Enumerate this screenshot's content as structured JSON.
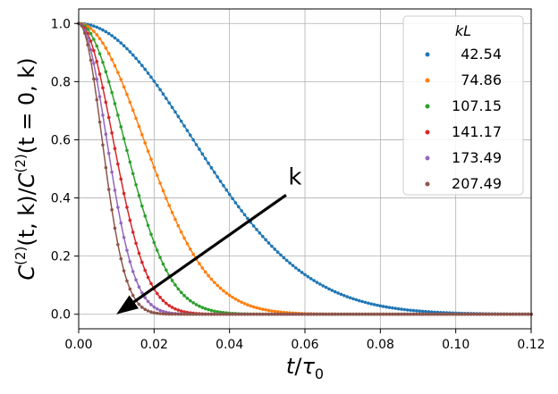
{
  "chart_data": {
    "type": "scatter",
    "title": "",
    "xlabel_parts": [
      "t",
      "/",
      "τ",
      "0"
    ],
    "ylabel_parts": [
      "C",
      "(2)",
      "(t, k)/",
      "C",
      "(2)",
      "(t = 0, k)"
    ],
    "xlim": [
      0.0,
      0.12
    ],
    "ylim": [
      -0.05,
      1.05
    ],
    "x_ticks": [
      0.0,
      0.02,
      0.04,
      0.06,
      0.08,
      0.1,
      0.12
    ],
    "x_tick_labels": [
      "0.00",
      "0.02",
      "0.04",
      "0.06",
      "0.08",
      "0.10",
      "0.12"
    ],
    "y_ticks": [
      0.0,
      0.2,
      0.4,
      0.6,
      0.8,
      1.0
    ],
    "y_tick_labels": [
      "0.0",
      "0.2",
      "0.4",
      "0.6",
      "0.8",
      "1.0"
    ],
    "grid": true,
    "legend_title": "kL",
    "legend_position": "top-right",
    "x_step": 0.0008,
    "model": "exp(-(t/tau)^2)",
    "series": [
      {
        "name": "42.54",
        "label": "42.54",
        "color": "#1f77b4",
        "tau": 0.0425
      },
      {
        "name": "74.86",
        "label": "74.86",
        "color": "#ff7f0e",
        "tau": 0.0242
      },
      {
        "name": "107.15",
        "label": "107.15",
        "color": "#2ca02c",
        "tau": 0.0169
      },
      {
        "name": "141.17",
        "label": "141.17",
        "color": "#d62728",
        "tau": 0.0128
      },
      {
        "name": "173.49",
        "label": "173.49",
        "color": "#9467bd",
        "tau": 0.0104
      },
      {
        "name": "207.49",
        "label": "207.49",
        "color": "#8c564b",
        "tau": 0.0087
      }
    ],
    "annotation": {
      "text": "k",
      "arrow_from": [
        0.055,
        0.41
      ],
      "arrow_to": [
        0.01,
        0.0
      ]
    }
  }
}
